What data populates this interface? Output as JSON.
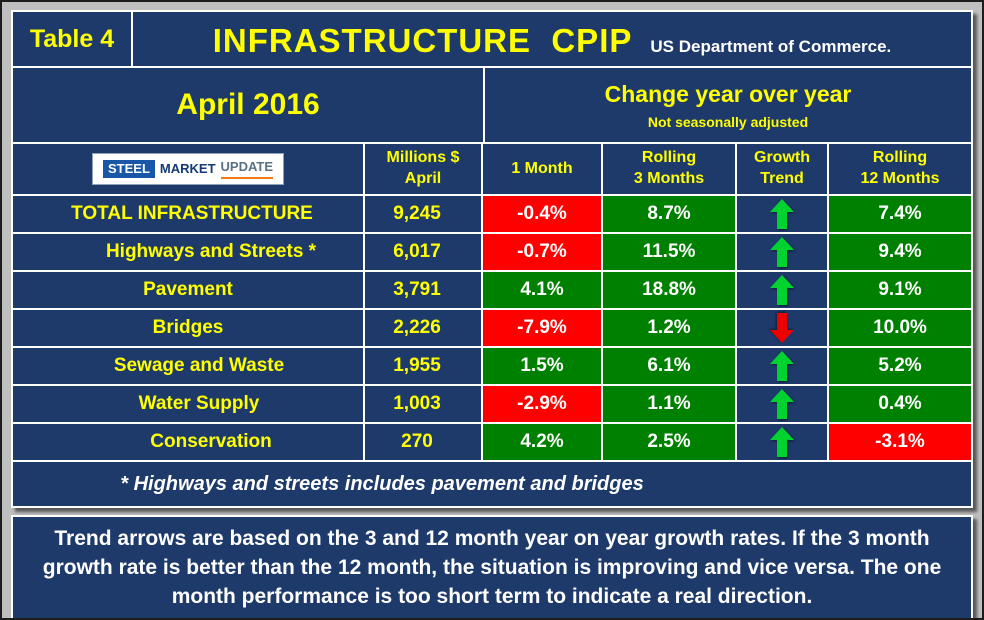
{
  "header": {
    "table_label": "Table 4",
    "title": "INFRASTRUCTURE  CPIP",
    "subtitle": "US Department of Commerce."
  },
  "period": {
    "month_label": "April 2016",
    "change_label": "Change year over year",
    "adjustment_note": "Not seasonally adjusted"
  },
  "logo": {
    "steel": "STEEL",
    "market": "MARKET",
    "update": "UPDATE"
  },
  "columns": {
    "millions_line1": "Millions $",
    "millions_line2": "April",
    "one_month": "1 Month",
    "rolling3_line1": "Rolling",
    "rolling3_line2": "3 Months",
    "trend_line1": "Growth",
    "trend_line2": "Trend",
    "rolling12_line1": "Rolling",
    "rolling12_line2": "12 Months"
  },
  "chart_data": {
    "type": "table",
    "title": "INFRASTRUCTURE CPIP — April 2016 — Change year over year (Not seasonally adjusted)",
    "columns": [
      "",
      "Millions $ April",
      "1 Month",
      "Rolling 3 Months",
      "Growth Trend",
      "Rolling 12 Months"
    ],
    "rows": [
      {
        "label": "TOTAL INFRASTRUCTURE",
        "millions": "9,245",
        "one_month": "-0.4%",
        "rolling_3m": "8.7%",
        "trend": "up",
        "rolling_12m": "7.4%",
        "indent": "flush"
      },
      {
        "label": "Highways and Streets *",
        "millions": "6,017",
        "one_month": "-0.7%",
        "rolling_3m": "11.5%",
        "trend": "up",
        "rolling_12m": "9.4%",
        "indent": "indent2"
      },
      {
        "label": "Pavement",
        "millions": "3,791",
        "one_month": "4.1%",
        "rolling_3m": "18.8%",
        "trend": "up",
        "rolling_12m": "9.1%",
        "indent": "centered"
      },
      {
        "label": "Bridges",
        "millions": "2,226",
        "one_month": "-7.9%",
        "rolling_3m": "1.2%",
        "trend": "down",
        "rolling_12m": "10.0%",
        "indent": "centered"
      },
      {
        "label": "Sewage and Waste",
        "millions": "1,955",
        "one_month": "1.5%",
        "rolling_3m": "6.1%",
        "trend": "up",
        "rolling_12m": "5.2%",
        "indent": "indent1"
      },
      {
        "label": "Water Supply",
        "millions": "1,003",
        "one_month": "-2.9%",
        "rolling_3m": "1.1%",
        "trend": "up",
        "rolling_12m": "0.4%",
        "indent": "indent1"
      },
      {
        "label": "Conservation",
        "millions": "270",
        "one_month": "4.2%",
        "rolling_3m": "2.5%",
        "trend": "up",
        "rolling_12m": "-3.1%",
        "indent": "indent2"
      }
    ]
  },
  "footnote": "* Highways and streets includes pavement and bridges",
  "note": "Trend arrows are based on the 3 and 12 month year on year growth rates. If the 3 month growth rate is better than the 12 month, the situation is improving and vice versa. The one month performance is too short term to indicate a real direction.",
  "colors": {
    "navy": "#1e3a6b",
    "yellow": "#ffff00",
    "green": "#008000",
    "red": "#ff0000",
    "arrow_green": "#00d230",
    "arrow_red": "#ee0000",
    "gray": "#bfbfbf"
  }
}
